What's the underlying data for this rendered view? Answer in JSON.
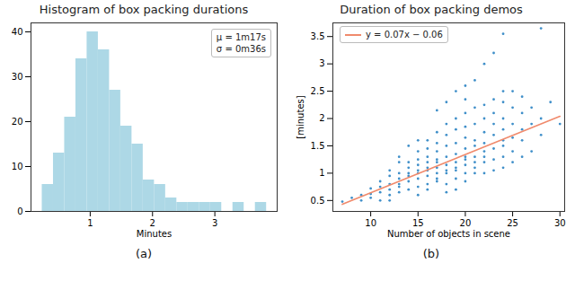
{
  "chart_data": [
    {
      "type": "histogram",
      "title": "Histogram of box packing durations",
      "xlabel": "Minutes",
      "bins": [
        0.23,
        0.41,
        0.59,
        0.77,
        0.95,
        1.13,
        1.31,
        1.49,
        1.67,
        1.85,
        2.03,
        2.21,
        2.39,
        2.57,
        2.75,
        2.93,
        3.11,
        3.29,
        3.47,
        3.65,
        3.83
      ],
      "counts": [
        6,
        13,
        21,
        34,
        40,
        36,
        27,
        19,
        15,
        7,
        6,
        3,
        2,
        2,
        2,
        2,
        0,
        2,
        0,
        2
      ],
      "color": "#add8e6",
      "xlim": [
        0.05,
        4.0
      ],
      "ylim": [
        0,
        42
      ],
      "xticks": [
        1,
        2,
        3
      ],
      "yticks": [
        0,
        10,
        20,
        30,
        40
      ],
      "annotations": [
        "μ = 1m17s",
        "σ = 0m36s"
      ],
      "caption": "(a)"
    },
    {
      "type": "scatter",
      "title": "Duration of box packing demos",
      "xlabel": "Number of objects in scene",
      "ylabel": "[minutes]",
      "x": [
        7,
        8,
        9,
        9,
        10,
        10,
        10,
        11,
        11,
        11,
        11,
        12,
        12,
        12,
        12,
        12,
        12,
        13,
        13,
        13,
        13,
        13,
        13,
        13,
        14,
        14,
        14,
        14,
        14,
        14,
        14,
        15,
        15,
        15,
        15,
        15,
        15,
        15,
        15,
        15,
        16,
        16,
        16,
        16,
        16,
        16,
        16,
        16,
        16,
        17,
        17,
        17,
        17,
        17,
        17,
        17,
        17,
        17,
        17,
        18,
        18,
        18,
        18,
        18,
        18,
        18,
        18,
        18,
        18,
        19,
        19,
        19,
        19,
        19,
        19,
        19,
        19,
        19,
        19,
        20,
        20,
        20,
        20,
        20,
        20,
        20,
        20,
        20,
        20,
        20,
        21,
        21,
        21,
        21,
        21,
        21,
        21,
        21,
        21,
        22,
        22,
        22,
        22,
        22,
        22,
        22,
        22,
        22,
        23,
        23,
        23,
        23,
        23,
        23,
        23,
        23,
        24,
        24,
        24,
        24,
        24,
        24,
        24,
        24,
        24,
        25,
        25,
        25,
        25,
        25,
        25,
        26,
        26,
        26,
        26,
        26,
        27,
        27,
        27,
        28,
        28,
        28,
        29,
        30
      ],
      "y": [
        0.48,
        0.55,
        0.6,
        0.5,
        0.62,
        0.72,
        0.55,
        0.5,
        0.85,
        0.65,
        0.75,
        0.6,
        0.8,
        0.95,
        0.7,
        1.05,
        0.5,
        0.65,
        0.8,
        0.9,
        1.0,
        1.2,
        0.75,
        1.3,
        0.7,
        0.85,
        1.0,
        1.1,
        1.2,
        1.5,
        0.95,
        0.75,
        0.9,
        1.0,
        1.15,
        1.25,
        1.4,
        1.6,
        0.6,
        1.05,
        0.8,
        0.95,
        1.05,
        1.2,
        1.3,
        1.45,
        1.6,
        0.7,
        1.1,
        0.85,
        1.0,
        1.1,
        1.25,
        1.4,
        1.55,
        1.75,
        0.9,
        1.2,
        2.15,
        0.8,
        1.0,
        1.15,
        1.3,
        1.5,
        1.7,
        1.9,
        2.3,
        1.05,
        0.65,
        0.9,
        1.05,
        1.2,
        1.35,
        1.55,
        1.8,
        2.0,
        2.5,
        1.1,
        0.7,
        0.85,
        1.0,
        1.15,
        1.3,
        1.45,
        1.65,
        1.85,
        2.1,
        2.35,
        2.6,
        1.25,
        1.0,
        1.1,
        1.3,
        1.5,
        1.6,
        1.9,
        2.2,
        2.7,
        1.2,
        1.0,
        1.2,
        1.4,
        1.55,
        1.75,
        2.0,
        2.25,
        3.0,
        1.3,
        1.05,
        1.25,
        1.45,
        1.7,
        1.9,
        2.1,
        2.35,
        3.2,
        1.1,
        1.3,
        1.5,
        1.8,
        2.0,
        2.3,
        2.5,
        3.55,
        1.6,
        1.2,
        1.4,
        1.65,
        1.9,
        2.2,
        2.5,
        1.3,
        1.6,
        1.8,
        2.1,
        2.4,
        1.4,
        1.9,
        2.2,
        1.7,
        2.0,
        3.65,
        2.3,
        1.9
      ],
      "color": "#3f8fc9",
      "marker": "dot",
      "series": [
        {
          "name": "y = 0.07x − 0.06",
          "type": "line",
          "color": "#f08a6c",
          "x": [
            7,
            30
          ],
          "values": [
            0.43,
            2.04
          ]
        }
      ],
      "legend": "upper left",
      "xlim": [
        6,
        30.5
      ],
      "ylim": [
        0.3,
        3.75
      ],
      "xticks": [
        10,
        15,
        20,
        25,
        30
      ],
      "yticks": [
        0.5,
        1,
        1.5,
        2,
        2.5,
        3,
        3.5
      ],
      "caption": "(b)"
    }
  ]
}
